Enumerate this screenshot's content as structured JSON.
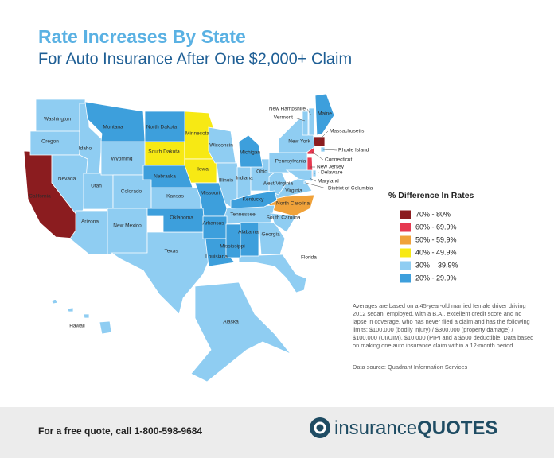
{
  "header": {
    "title": "Rate Increases By State",
    "subtitle": "For Auto Insurance After One $2,000+ Claim"
  },
  "legend": {
    "title": "% Difference In Rates",
    "items": [
      {
        "label": "70% - 80%",
        "color": "#8b1c1f",
        "states": [
          "California",
          "Massachusetts"
        ]
      },
      {
        "label": "60% - 69.9%",
        "color": "#e63950",
        "states": [
          "Connecticut",
          "New Jersey"
        ]
      },
      {
        "label": "50% - 59.9%",
        "color": "#f0a23a",
        "states": [
          "North Carolina"
        ]
      },
      {
        "label": "40% - 49.9%",
        "color": "#f7e914",
        "states": [
          "South Dakota",
          "Minnesota",
          "Iowa"
        ]
      },
      {
        "label": "30% – 39.9%",
        "color": "#8fcdf2",
        "states": [
          "Washington",
          "Oregon",
          "Idaho",
          "Nevada",
          "Utah",
          "Arizona",
          "Wyoming",
          "Colorado",
          "New Mexico",
          "Kansas",
          "Texas",
          "Wisconsin",
          "Illinois",
          "Indiana",
          "Ohio",
          "Tennessee",
          "Georgia",
          "Florida",
          "South Carolina",
          "Virginia",
          "West Virginia",
          "Pennsylvania",
          "New York",
          "Vermont",
          "New Hampshire",
          "Rhode Island",
          "Delaware",
          "Maryland",
          "District of Columbia",
          "Alaska",
          "Hawaii"
        ]
      },
      {
        "label": "20% - 29.9%",
        "color": "#3d9fdc",
        "states": [
          "Montana",
          "North Dakota",
          "Nebraska",
          "Missouri",
          "Oklahoma",
          "Arkansas",
          "Louisiana",
          "Mississippi",
          "Alabama",
          "Kentucky",
          "Michigan",
          "Maine"
        ]
      }
    ]
  },
  "note": "Averages are based on a 45-year-old married female driver driving 2012 sedan, employed, with a B.A., excellent credit score and no lapse in coverage, who has never filed a claim and has the following limits: $100,000 (bodily injury) / $300,000 (property damage) / $100,000 (UI/UIM), $10,000 (PIP) and a $500 deductible. Data based on making one auto insurance claim within a 12-month period.",
  "source": "Data source: Quadrant Information Services",
  "footer": {
    "text": "For a free quote, call 1-800-598-9684",
    "logo": [
      "insurance",
      "QUOTES"
    ]
  }
}
